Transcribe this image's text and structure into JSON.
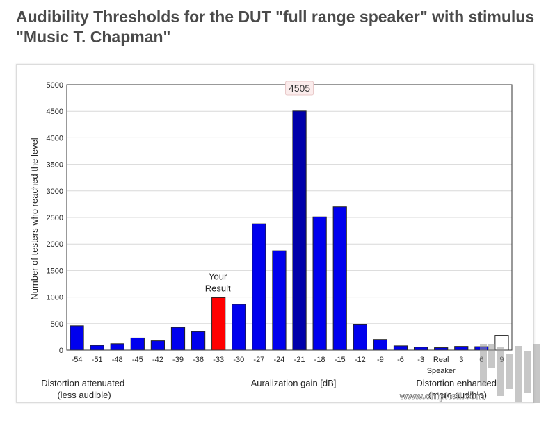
{
  "page": {
    "title": "Audibility Thresholds for the DUT \"full range speaker\" with stimulus \"Music T. Chapman\""
  },
  "chart_data": {
    "type": "bar",
    "categories": [
      "-54",
      "-51",
      "-48",
      "-45",
      "-42",
      "-39",
      "-36",
      "-33",
      "-30",
      "-27",
      "-24",
      "-21",
      "-18",
      "-15",
      "-12",
      "-9",
      "-6",
      "-3",
      "Real Speaker",
      "3",
      "6",
      "9"
    ],
    "values": [
      460,
      90,
      120,
      230,
      175,
      430,
      350,
      990,
      865,
      2380,
      1870,
      4505,
      2510,
      2700,
      480,
      200,
      80,
      55,
      45,
      70,
      65,
      280
    ],
    "highlight_index": 7,
    "highlight_label": "Your Result",
    "hover_index": 11,
    "tooltip_value": "4505",
    "ylim": [
      0,
      5000
    ],
    "yticks": [
      0,
      500,
      1000,
      1500,
      2000,
      2500,
      3000,
      3500,
      4000,
      4500,
      5000
    ],
    "ylabel": "Number of testers who reached the level",
    "xlabel": "Auralization gain [dB]",
    "left_note": "Distortion attenuated (less audible)",
    "left_note_lines": [
      "Distortion attenuated",
      "(less audible)"
    ],
    "right_note": "Distortion enhanced (more audible)",
    "right_note_lines": [
      "Distortion enhanced",
      "(more audible)"
    ],
    "colors": {
      "bar": "#0000ee",
      "bar_hover": "#0000aa",
      "highlight": "#ff0000",
      "last_bar": "#ffffff",
      "grid": "#d8d8d8"
    }
  },
  "watermark": {
    "text": "www.chiphell.com"
  }
}
